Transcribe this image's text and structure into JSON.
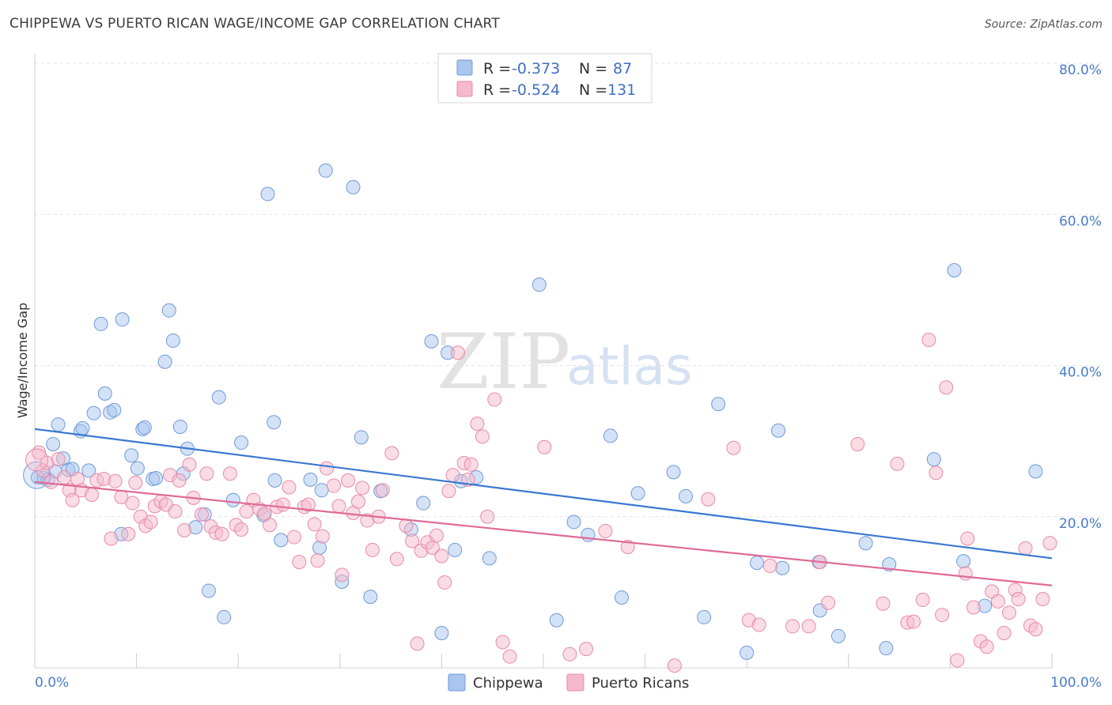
{
  "header": {
    "title": "CHIPPEWA VS PUERTO RICAN WAGE/INCOME GAP CORRELATION CHART",
    "source": "Source: ZipAtlas.com"
  },
  "watermark": {
    "zip": "ZIP",
    "atlas": "atlas"
  },
  "legend": {
    "rows": [
      {
        "r_label": "R =",
        "r_value": "-0.373",
        "n_label": "N =",
        "n_value": "87",
        "color": "#a9c6ef",
        "stroke": "#6f9ad8"
      },
      {
        "r_label": "R =",
        "r_value": "-0.524",
        "n_label": "N =",
        "n_value": "131",
        "color": "#f6b9cb",
        "stroke": "#e88aa8"
      }
    ]
  },
  "bottom_legend": [
    {
      "label": "Chippewa",
      "color": "#a9c6ef",
      "stroke": "#6f9ad8"
    },
    {
      "label": "Puerto Ricans",
      "color": "#f6b9cb",
      "stroke": "#e88aa8"
    }
  ],
  "chart_data": {
    "type": "scatter",
    "title": "CHIPPEWA VS PUERTO RICAN WAGE/INCOME GAP CORRELATION CHART",
    "xlabel": "",
    "ylabel": "Wage/Income Gap",
    "xlim": [
      0,
      100
    ],
    "ylim": [
      0,
      80
    ],
    "x_tick_labels": [
      "0.0%",
      "100.0%"
    ],
    "y_ticks": [
      20,
      40,
      60,
      80
    ],
    "y_tick_labels": [
      "20.0%",
      "40.0%",
      "60.0%",
      "80.0%"
    ],
    "grid": true,
    "legend_position": "top-center",
    "colors": {
      "chippewa": "#3a78d1",
      "puerto_ricans": "#e06a96"
    },
    "series": [
      {
        "name": "Chippewa",
        "trendline": {
          "x": [
            0,
            100
          ],
          "y": [
            31.6,
            14.5
          ]
        },
        "points": [
          [
            0.3,
            25.2
          ],
          [
            0.9,
            25.1
          ],
          [
            1.3,
            24.9
          ],
          [
            2.0,
            26.0
          ],
          [
            1.8,
            29.6
          ],
          [
            2.3,
            32.2
          ],
          [
            2.8,
            27.7
          ],
          [
            3.3,
            26.2
          ],
          [
            3.7,
            26.3
          ],
          [
            4.5,
            31.3
          ],
          [
            5.3,
            26.1
          ],
          [
            5.8,
            33.7
          ],
          [
            4.7,
            31.7
          ],
          [
            6.5,
            45.5
          ],
          [
            6.9,
            36.3
          ],
          [
            7.4,
            33.8
          ],
          [
            7.8,
            34.1
          ],
          [
            8.6,
            46.1
          ],
          [
            8.5,
            17.7
          ],
          [
            9.5,
            28.1
          ],
          [
            10.1,
            26.4
          ],
          [
            10.6,
            31.6
          ],
          [
            10.8,
            31.8
          ],
          [
            11.6,
            25.0
          ],
          [
            11.9,
            25.1
          ],
          [
            12.8,
            40.5
          ],
          [
            13.2,
            47.3
          ],
          [
            13.6,
            43.3
          ],
          [
            14.3,
            31.9
          ],
          [
            14.6,
            25.7
          ],
          [
            15.0,
            29.0
          ],
          [
            15.8,
            18.6
          ],
          [
            16.7,
            20.3
          ],
          [
            17.1,
            10.2
          ],
          [
            18.1,
            35.8
          ],
          [
            18.6,
            6.7
          ],
          [
            19.5,
            22.2
          ],
          [
            20.3,
            29.8
          ],
          [
            22.5,
            20.2
          ],
          [
            22.9,
            62.7
          ],
          [
            23.5,
            32.5
          ],
          [
            23.6,
            24.8
          ],
          [
            24.2,
            16.9
          ],
          [
            27.1,
            24.9
          ],
          [
            28.0,
            15.9
          ],
          [
            28.2,
            23.5
          ],
          [
            28.6,
            65.8
          ],
          [
            30.2,
            11.4
          ],
          [
            31.3,
            63.6
          ],
          [
            32.1,
            30.5
          ],
          [
            33.0,
            9.4
          ],
          [
            34.0,
            23.4
          ],
          [
            37.0,
            18.3
          ],
          [
            38.2,
            21.8
          ],
          [
            39.0,
            43.2
          ],
          [
            40.0,
            4.6
          ],
          [
            40.6,
            41.7
          ],
          [
            41.3,
            15.6
          ],
          [
            41.9,
            24.7
          ],
          [
            43.4,
            25.2
          ],
          [
            44.7,
            14.5
          ],
          [
            49.6,
            50.7
          ],
          [
            51.3,
            6.3
          ],
          [
            53.0,
            19.3
          ],
          [
            54.4,
            17.6
          ],
          [
            56.6,
            30.7
          ],
          [
            57.7,
            9.3
          ],
          [
            59.3,
            23.1
          ],
          [
            62.8,
            25.9
          ],
          [
            64.0,
            22.7
          ],
          [
            65.8,
            6.7
          ],
          [
            67.2,
            34.9
          ],
          [
            70.0,
            2.0
          ],
          [
            71.0,
            13.9
          ],
          [
            73.1,
            31.4
          ],
          [
            73.5,
            13.2
          ],
          [
            77.1,
            14.0
          ],
          [
            77.2,
            7.6
          ],
          [
            79.0,
            4.2
          ],
          [
            81.7,
            16.5
          ],
          [
            83.7,
            2.6
          ],
          [
            84.0,
            13.7
          ],
          [
            88.4,
            27.6
          ],
          [
            90.4,
            52.6
          ],
          [
            91.3,
            14.1
          ],
          [
            93.4,
            8.2
          ],
          [
            98.4,
            26.0
          ]
        ]
      },
      {
        "name": "Puerto Ricans",
        "trendline": {
          "x": [
            0,
            100
          ],
          "y": [
            24.6,
            10.9
          ]
        },
        "points": [
          [
            0.4,
            28.5
          ],
          [
            0.8,
            26.1
          ],
          [
            1.2,
            27.1
          ],
          [
            1.6,
            24.6
          ],
          [
            2.3,
            27.6
          ],
          [
            2.9,
            25.2
          ],
          [
            3.4,
            23.5
          ],
          [
            3.7,
            22.2
          ],
          [
            4.2,
            25.0
          ],
          [
            4.6,
            23.5
          ],
          [
            5.6,
            22.9
          ],
          [
            6.1,
            24.8
          ],
          [
            6.8,
            25.0
          ],
          [
            7.5,
            17.1
          ],
          [
            7.9,
            24.7
          ],
          [
            8.5,
            22.6
          ],
          [
            9.2,
            17.7
          ],
          [
            9.6,
            21.8
          ],
          [
            9.9,
            24.5
          ],
          [
            10.4,
            20.0
          ],
          [
            10.9,
            18.8
          ],
          [
            11.4,
            19.3
          ],
          [
            11.8,
            21.4
          ],
          [
            12.4,
            22.0
          ],
          [
            12.9,
            21.6
          ],
          [
            13.3,
            25.5
          ],
          [
            13.8,
            20.7
          ],
          [
            14.2,
            24.8
          ],
          [
            14.7,
            18.2
          ],
          [
            15.2,
            26.9
          ],
          [
            15.6,
            22.5
          ],
          [
            16.4,
            20.3
          ],
          [
            16.9,
            25.7
          ],
          [
            17.3,
            18.7
          ],
          [
            17.8,
            17.9
          ],
          [
            18.4,
            17.7
          ],
          [
            19.2,
            25.7
          ],
          [
            19.8,
            18.9
          ],
          [
            20.3,
            18.3
          ],
          [
            20.8,
            20.7
          ],
          [
            21.5,
            22.2
          ],
          [
            22.1,
            21.0
          ],
          [
            22.6,
            20.4
          ],
          [
            23.1,
            18.9
          ],
          [
            23.8,
            21.3
          ],
          [
            24.4,
            21.6
          ],
          [
            25.0,
            23.9
          ],
          [
            25.5,
            17.3
          ],
          [
            26.0,
            14.0
          ],
          [
            26.5,
            21.3
          ],
          [
            26.9,
            21.6
          ],
          [
            27.5,
            19.0
          ],
          [
            27.8,
            14.2
          ],
          [
            28.3,
            17.4
          ],
          [
            28.7,
            26.4
          ],
          [
            29.4,
            24.1
          ],
          [
            29.9,
            21.4
          ],
          [
            30.2,
            12.3
          ],
          [
            30.8,
            24.8
          ],
          [
            31.3,
            20.5
          ],
          [
            31.8,
            22.0
          ],
          [
            32.2,
            23.8
          ],
          [
            32.7,
            19.5
          ],
          [
            33.2,
            15.6
          ],
          [
            33.8,
            20.0
          ],
          [
            34.2,
            23.5
          ],
          [
            35.1,
            28.4
          ],
          [
            35.6,
            14.4
          ],
          [
            36.5,
            18.8
          ],
          [
            37.1,
            16.8
          ],
          [
            37.6,
            3.2
          ],
          [
            38.0,
            15.5
          ],
          [
            38.6,
            16.6
          ],
          [
            39.1,
            15.9
          ],
          [
            39.5,
            17.5
          ],
          [
            40.0,
            14.8
          ],
          [
            40.3,
            11.3
          ],
          [
            40.7,
            23.4
          ],
          [
            41.1,
            25.5
          ],
          [
            41.6,
            41.7
          ],
          [
            42.2,
            27.1
          ],
          [
            42.6,
            24.9
          ],
          [
            42.9,
            26.9
          ],
          [
            43.5,
            32.3
          ],
          [
            44.0,
            30.6
          ],
          [
            44.5,
            20.0
          ],
          [
            45.2,
            35.5
          ],
          [
            46.0,
            3.4
          ],
          [
            46.7,
            1.5
          ],
          [
            50.1,
            29.2
          ],
          [
            52.6,
            1.8
          ],
          [
            54.2,
            2.5
          ],
          [
            56.1,
            18.1
          ],
          [
            58.3,
            16.0
          ],
          [
            62.9,
            0.3
          ],
          [
            66.2,
            22.3
          ],
          [
            68.7,
            29.1
          ],
          [
            70.2,
            6.3
          ],
          [
            71.2,
            5.7
          ],
          [
            72.3,
            13.5
          ],
          [
            74.5,
            5.5
          ],
          [
            76.1,
            5.5
          ],
          [
            77.2,
            14.0
          ],
          [
            78.0,
            8.6
          ],
          [
            80.9,
            29.6
          ],
          [
            83.4,
            8.5
          ],
          [
            84.8,
            27.0
          ],
          [
            85.8,
            6.0
          ],
          [
            86.4,
            6.1
          ],
          [
            87.3,
            9.0
          ],
          [
            87.9,
            43.4
          ],
          [
            88.6,
            25.8
          ],
          [
            89.2,
            7.0
          ],
          [
            89.6,
            37.1
          ],
          [
            90.7,
            1.0
          ],
          [
            91.5,
            12.5
          ],
          [
            91.7,
            17.1
          ],
          [
            92.3,
            8.0
          ],
          [
            93.0,
            3.5
          ],
          [
            93.6,
            2.8
          ],
          [
            94.1,
            10.1
          ],
          [
            94.7,
            8.8
          ],
          [
            95.3,
            4.6
          ],
          [
            95.8,
            7.3
          ],
          [
            96.4,
            10.3
          ],
          [
            96.7,
            9.1
          ],
          [
            97.4,
            15.8
          ],
          [
            97.9,
            5.6
          ],
          [
            98.4,
            5.1
          ],
          [
            99.1,
            9.1
          ],
          [
            99.8,
            16.5
          ]
        ]
      }
    ]
  }
}
